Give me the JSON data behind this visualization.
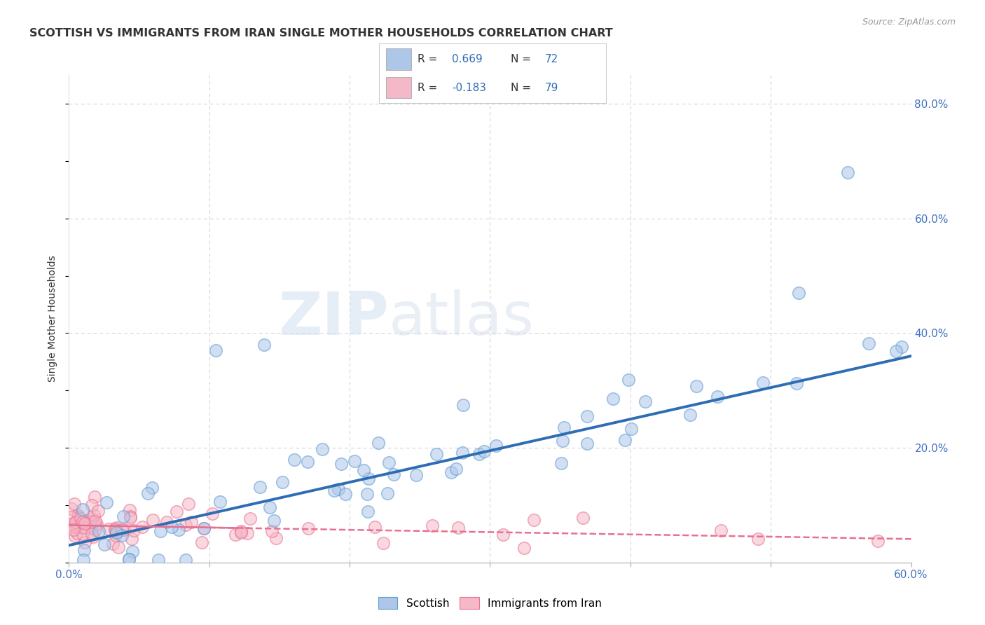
{
  "title": "SCOTTISH VS IMMIGRANTS FROM IRAN SINGLE MOTHER HOUSEHOLDS CORRELATION CHART",
  "source": "Source: ZipAtlas.com",
  "ylabel": "Single Mother Households",
  "xlim": [
    0.0,
    0.6
  ],
  "ylim": [
    0.0,
    0.85
  ],
  "scottish_R": 0.669,
  "scottish_N": 72,
  "iran_R": -0.183,
  "iran_N": 79,
  "scottish_color": "#aec6e8",
  "iran_color": "#f5b8c8",
  "scottish_edge_color": "#5b9bd5",
  "iran_edge_color": "#e87090",
  "scottish_line_color": "#2e6db4",
  "iran_line_color": "#e87090",
  "background_color": "#ffffff",
  "grid_color": "#cccccc",
  "watermark_zip": "ZIP",
  "watermark_atlas": "atlas",
  "legend_scottish": "Scottish",
  "legend_iran": "Immigrants from Iran",
  "title_color": "#333333",
  "axis_label_color": "#333333",
  "tick_color": "#4472c4",
  "source_color": "#999999"
}
